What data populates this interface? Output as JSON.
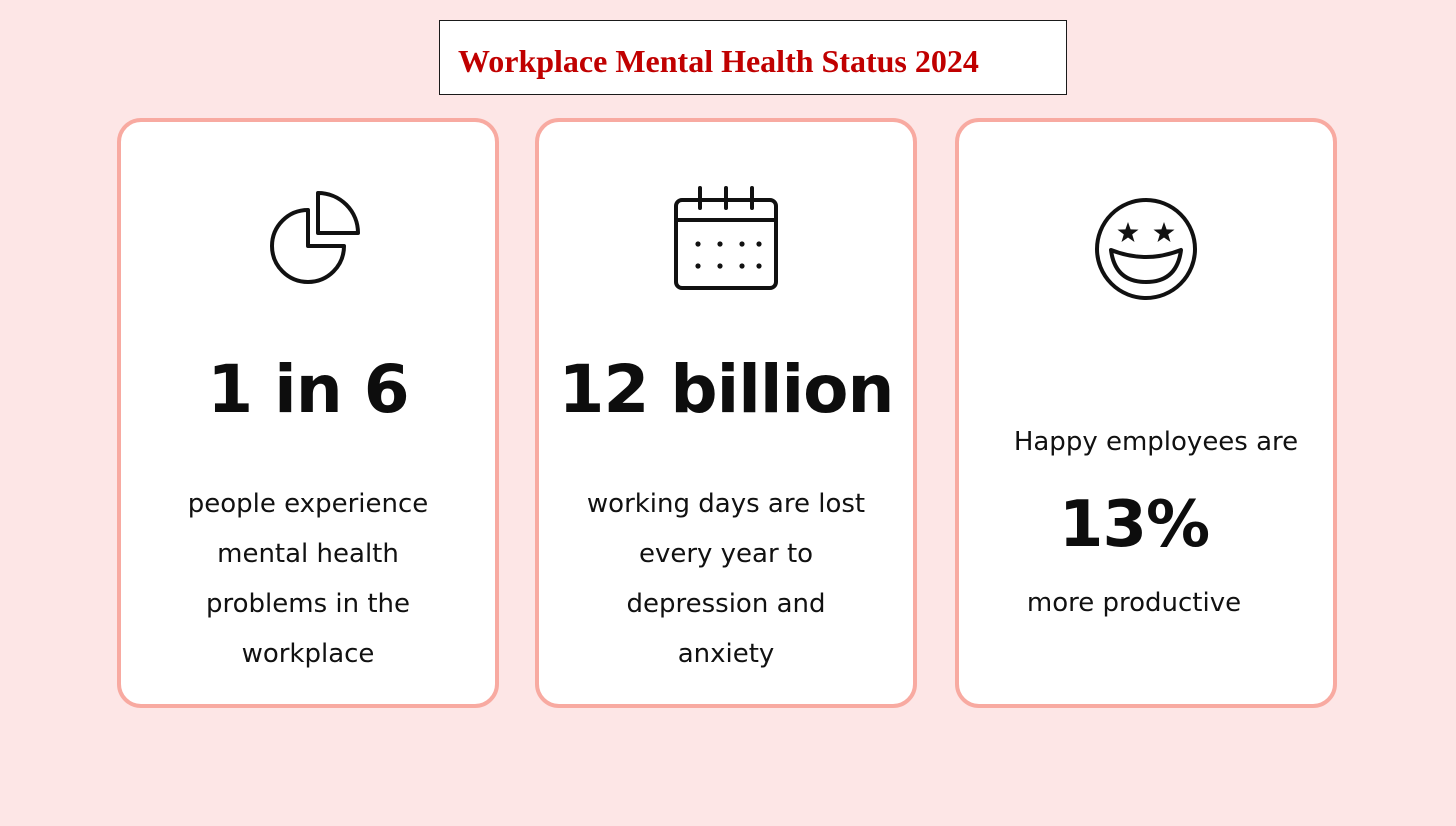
{
  "title": "Workplace Mental Health Status 2024",
  "colors": {
    "background": "#fde6e6",
    "title_text": "#c00000",
    "card_border": "#f8aaa1"
  },
  "cards": [
    {
      "icon": "pie-chart-icon",
      "stat": "1 in 6",
      "description_lines": [
        "people experience",
        "mental health",
        "problems in the",
        "workplace"
      ]
    },
    {
      "icon": "calendar-icon",
      "stat": "12 billion",
      "description_lines": [
        "working days are lost",
        "every year to",
        "depression and",
        "anxiety"
      ]
    },
    {
      "icon": "star-eyes-smiley-icon",
      "intro": "Happy employees are",
      "stat": "13%",
      "outro": "more productive"
    }
  ]
}
